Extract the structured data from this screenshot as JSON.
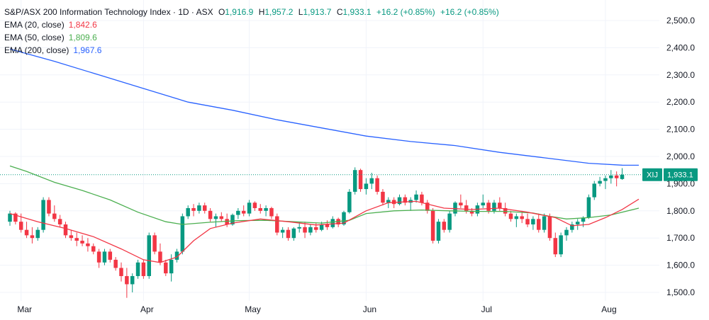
{
  "legend": {
    "title": "S&P/ASX 200 Information Technology Index · 1D · ASX",
    "o_label": "O",
    "o": "1,916.9",
    "h_label": "H",
    "h": "1,957.2",
    "l_label": "L",
    "l": "1,913.7",
    "c_label": "C",
    "c": "1,933.1",
    "chg": "+16.2 (+0.85%)",
    "chg2": "+16.2 (+0.85%)",
    "ema20_label": "EMA (20, close)",
    "ema20_value": "1,842.6",
    "ema50_label": "EMA (50, close)",
    "ema50_value": "1,809.6",
    "ema200_label": "EMA (200, close)",
    "ema200_value": "1,967.6"
  },
  "colors": {
    "up": "#089981",
    "down": "#f23645",
    "ema20": "#f23645",
    "ema50": "#4caf50",
    "ema200": "#2962ff",
    "text_ohlc": "#089981",
    "grid": "#f0f3fa"
  },
  "price_tag": {
    "symbol": "XIJ",
    "value": "1,933.1"
  },
  "chart_data": {
    "type": "candlestick",
    "y_ticks": [
      "2,500.0",
      "2,400.0",
      "2,300.0",
      "2,200.0",
      "2,100.0",
      "2,000.0",
      "1,900.0",
      "1,800.0",
      "1,700.0",
      "1,600.0",
      "1,500.0"
    ],
    "y_tick_values": [
      2500,
      2400,
      2300,
      2200,
      2100,
      2000,
      1900,
      1800,
      1700,
      1600,
      1500
    ],
    "ylim": [
      1470,
      2560
    ],
    "x_ticks": [
      {
        "label": "Mar",
        "index": 2
      },
      {
        "label": "Apr",
        "index": 24
      },
      {
        "label": "May",
        "index": 43
      },
      {
        "label": "Jun",
        "index": 64
      },
      {
        "label": "Jul",
        "index": 85
      },
      {
        "label": "Aug",
        "index": 107
      }
    ],
    "candles": [
      [
        1760,
        1800,
        1745,
        1790
      ],
      [
        1790,
        1795,
        1750,
        1760
      ],
      [
        1760,
        1790,
        1720,
        1730
      ],
      [
        1730,
        1760,
        1700,
        1710
      ],
      [
        1710,
        1740,
        1680,
        1700
      ],
      [
        1700,
        1740,
        1690,
        1730
      ],
      [
        1730,
        1850,
        1720,
        1840
      ],
      [
        1840,
        1850,
        1780,
        1790
      ],
      [
        1790,
        1820,
        1760,
        1770
      ],
      [
        1770,
        1785,
        1740,
        1750
      ],
      [
        1750,
        1760,
        1700,
        1710
      ],
      [
        1710,
        1730,
        1690,
        1700
      ],
      [
        1700,
        1720,
        1670,
        1690
      ],
      [
        1690,
        1710,
        1670,
        1680
      ],
      [
        1680,
        1700,
        1650,
        1670
      ],
      [
        1670,
        1680,
        1640,
        1650
      ],
      [
        1650,
        1660,
        1590,
        1610
      ],
      [
        1610,
        1660,
        1600,
        1650
      ],
      [
        1650,
        1660,
        1610,
        1620
      ],
      [
        1620,
        1630,
        1580,
        1590
      ],
      [
        1590,
        1610,
        1540,
        1560
      ],
      [
        1560,
        1590,
        1480,
        1530
      ],
      [
        1530,
        1570,
        1500,
        1560
      ],
      [
        1560,
        1620,
        1550,
        1610
      ],
      [
        1610,
        1620,
        1550,
        1560
      ],
      [
        1560,
        1720,
        1550,
        1710
      ],
      [
        1710,
        1720,
        1640,
        1650
      ],
      [
        1650,
        1680,
        1600,
        1610
      ],
      [
        1610,
        1620,
        1560,
        1570
      ],
      [
        1570,
        1640,
        1540,
        1620
      ],
      [
        1620,
        1660,
        1610,
        1650
      ],
      [
        1650,
        1790,
        1640,
        1780
      ],
      [
        1780,
        1820,
        1770,
        1810
      ],
      [
        1810,
        1825,
        1780,
        1800
      ],
      [
        1800,
        1830,
        1790,
        1820
      ],
      [
        1820,
        1830,
        1790,
        1800
      ],
      [
        1800,
        1810,
        1760,
        1770
      ],
      [
        1770,
        1790,
        1740,
        1780
      ],
      [
        1780,
        1795,
        1760,
        1770
      ],
      [
        1770,
        1790,
        1740,
        1750
      ],
      [
        1750,
        1790,
        1745,
        1785
      ],
      [
        1785,
        1810,
        1770,
        1800
      ],
      [
        1800,
        1820,
        1780,
        1790
      ],
      [
        1790,
        1840,
        1780,
        1830
      ],
      [
        1830,
        1835,
        1800,
        1810
      ],
      [
        1810,
        1825,
        1790,
        1800
      ],
      [
        1800,
        1820,
        1780,
        1810
      ],
      [
        1810,
        1815,
        1770,
        1780
      ],
      [
        1780,
        1790,
        1710,
        1720
      ],
      [
        1720,
        1740,
        1700,
        1730
      ],
      [
        1730,
        1740,
        1690,
        1700
      ],
      [
        1700,
        1740,
        1690,
        1735
      ],
      [
        1735,
        1760,
        1720,
        1740
      ],
      [
        1740,
        1760,
        1700,
        1720
      ],
      [
        1720,
        1750,
        1710,
        1740
      ],
      [
        1740,
        1755,
        1720,
        1730
      ],
      [
        1730,
        1760,
        1725,
        1750
      ],
      [
        1750,
        1765,
        1730,
        1740
      ],
      [
        1740,
        1780,
        1735,
        1770
      ],
      [
        1770,
        1775,
        1740,
        1750
      ],
      [
        1750,
        1800,
        1745,
        1795
      ],
      [
        1795,
        1880,
        1790,
        1870
      ],
      [
        1870,
        1960,
        1860,
        1950
      ],
      [
        1950,
        1955,
        1870,
        1880
      ],
      [
        1880,
        1920,
        1860,
        1900
      ],
      [
        1900,
        1940,
        1880,
        1920
      ],
      [
        1920,
        1930,
        1860,
        1870
      ],
      [
        1870,
        1880,
        1820,
        1830
      ],
      [
        1830,
        1850,
        1810,
        1840
      ],
      [
        1840,
        1850,
        1810,
        1825
      ],
      [
        1825,
        1860,
        1820,
        1850
      ],
      [
        1850,
        1860,
        1820,
        1830
      ],
      [
        1830,
        1850,
        1800,
        1840
      ],
      [
        1840,
        1875,
        1830,
        1860
      ],
      [
        1860,
        1870,
        1820,
        1830
      ],
      [
        1830,
        1840,
        1790,
        1800
      ],
      [
        1800,
        1810,
        1680,
        1690
      ],
      [
        1690,
        1770,
        1680,
        1760
      ],
      [
        1760,
        1770,
        1720,
        1730
      ],
      [
        1730,
        1800,
        1720,
        1790
      ],
      [
        1790,
        1835,
        1780,
        1830
      ],
      [
        1830,
        1860,
        1810,
        1820
      ],
      [
        1820,
        1840,
        1790,
        1800
      ],
      [
        1800,
        1810,
        1780,
        1790
      ],
      [
        1790,
        1830,
        1780,
        1820
      ],
      [
        1820,
        1860,
        1810,
        1830
      ],
      [
        1830,
        1840,
        1790,
        1800
      ],
      [
        1800,
        1840,
        1790,
        1830
      ],
      [
        1830,
        1850,
        1800,
        1810
      ],
      [
        1810,
        1830,
        1780,
        1790
      ],
      [
        1790,
        1800,
        1760,
        1770
      ],
      [
        1770,
        1790,
        1740,
        1780
      ],
      [
        1780,
        1800,
        1755,
        1770
      ],
      [
        1770,
        1790,
        1740,
        1750
      ],
      [
        1750,
        1780,
        1730,
        1770
      ],
      [
        1770,
        1790,
        1720,
        1730
      ],
      [
        1730,
        1790,
        1720,
        1780
      ],
      [
        1780,
        1790,
        1690,
        1700
      ],
      [
        1700,
        1720,
        1630,
        1640
      ],
      [
        1640,
        1720,
        1630,
        1710
      ],
      [
        1710,
        1740,
        1690,
        1730
      ],
      [
        1730,
        1760,
        1720,
        1750
      ],
      [
        1750,
        1770,
        1730,
        1760
      ],
      [
        1760,
        1780,
        1740,
        1775
      ],
      [
        1775,
        1860,
        1770,
        1850
      ],
      [
        1850,
        1910,
        1840,
        1900
      ],
      [
        1900,
        1925,
        1890,
        1910
      ],
      [
        1910,
        1930,
        1880,
        1920
      ],
      [
        1920,
        1950,
        1900,
        1930
      ],
      [
        1930,
        1945,
        1890,
        1920
      ],
      [
        1917,
        1957,
        1914,
        1933
      ]
    ],
    "ema20": [
      [
        0,
        1790
      ],
      [
        5,
        1760
      ],
      [
        10,
        1735
      ],
      [
        15,
        1705
      ],
      [
        20,
        1660
      ],
      [
        24,
        1620
      ],
      [
        27,
        1610
      ],
      [
        30,
        1630
      ],
      [
        33,
        1690
      ],
      [
        36,
        1735
      ],
      [
        40,
        1755
      ],
      [
        45,
        1770
      ],
      [
        50,
        1760
      ],
      [
        55,
        1748
      ],
      [
        60,
        1755
      ],
      [
        64,
        1800
      ],
      [
        68,
        1830
      ],
      [
        73,
        1835
      ],
      [
        78,
        1810
      ],
      [
        83,
        1805
      ],
      [
        88,
        1810
      ],
      [
        93,
        1795
      ],
      [
        98,
        1775
      ],
      [
        101,
        1745
      ],
      [
        104,
        1750
      ],
      [
        107,
        1775
      ],
      [
        110,
        1805
      ],
      [
        113,
        1843
      ]
    ],
    "ema50": [
      [
        0,
        1965
      ],
      [
        3,
        1945
      ],
      [
        8,
        1905
      ],
      [
        13,
        1875
      ],
      [
        18,
        1840
      ],
      [
        23,
        1795
      ],
      [
        28,
        1760
      ],
      [
        31,
        1750
      ],
      [
        36,
        1758
      ],
      [
        41,
        1764
      ],
      [
        46,
        1765
      ],
      [
        51,
        1760
      ],
      [
        56,
        1755
      ],
      [
        61,
        1765
      ],
      [
        64,
        1790
      ],
      [
        69,
        1800
      ],
      [
        74,
        1803
      ],
      [
        79,
        1800
      ],
      [
        84,
        1798
      ],
      [
        89,
        1798
      ],
      [
        94,
        1792
      ],
      [
        97,
        1780
      ],
      [
        100,
        1770
      ],
      [
        104,
        1775
      ],
      [
        108,
        1785
      ],
      [
        113,
        1810
      ]
    ],
    "ema200": [
      [
        0,
        2395
      ],
      [
        8,
        2350
      ],
      [
        16,
        2300
      ],
      [
        24,
        2250
      ],
      [
        32,
        2200
      ],
      [
        40,
        2170
      ],
      [
        48,
        2135
      ],
      [
        56,
        2105
      ],
      [
        64,
        2075
      ],
      [
        72,
        2055
      ],
      [
        80,
        2040
      ],
      [
        88,
        2015
      ],
      [
        96,
        1995
      ],
      [
        104,
        1975
      ],
      [
        110,
        1968
      ],
      [
        113,
        1967.6
      ]
    ]
  }
}
